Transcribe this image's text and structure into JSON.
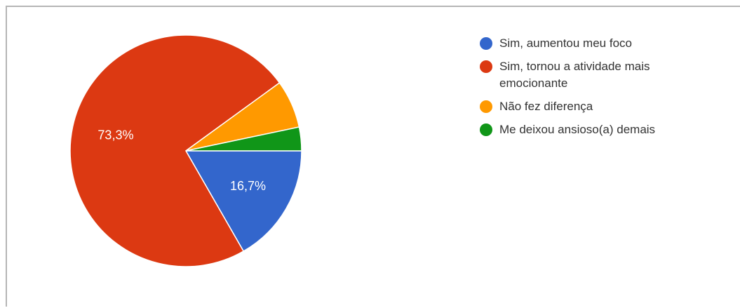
{
  "chart_data": {
    "type": "pie",
    "title": "",
    "series": [
      {
        "name": "Sim, aumentou meu foco",
        "value": 16.7,
        "label": "16,7%",
        "color": "#3366cc"
      },
      {
        "name": "Sim, tornou a atividade mais emocionante",
        "value": 73.3,
        "label": "73,3%",
        "color": "#dc3912"
      },
      {
        "name": "Não fez diferença",
        "value": 6.7,
        "label": "",
        "color": "#ff9900"
      },
      {
        "name": "Me deixou ansioso(a) demais",
        "value": 3.3,
        "label": "",
        "color": "#109618"
      }
    ],
    "legend_position": "right",
    "start_angle_deg": 90,
    "direction": "clockwise"
  }
}
